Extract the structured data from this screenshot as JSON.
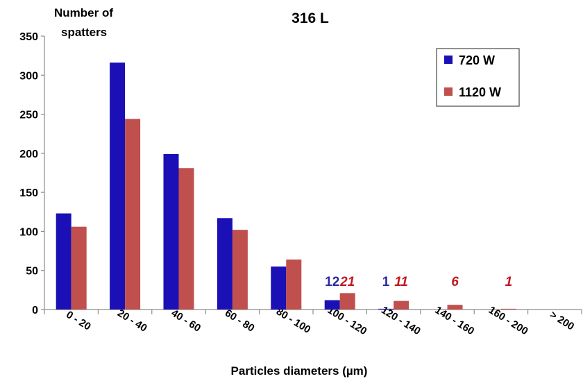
{
  "chart_data": {
    "type": "bar",
    "title": "316 L",
    "ylabel_lines": [
      "Number of",
      "spatters"
    ],
    "xlabel": "Particles diameters (µm)",
    "categories": [
      "0 - 20",
      "20 - 40",
      "40 - 60",
      "60 - 80",
      "80 - 100",
      "100 - 120",
      "120 - 140",
      "140 - 160",
      "160 - 200",
      "> 200"
    ],
    "ylim": [
      0,
      350
    ],
    "yticks": [
      0,
      50,
      100,
      150,
      200,
      250,
      300,
      350
    ],
    "grid": false,
    "legend_position": "top-right",
    "series": [
      {
        "name": "720 W",
        "color": "#1a10b5",
        "values": [
          123,
          316,
          199,
          117,
          55,
          12,
          1,
          0,
          0,
          0
        ]
      },
      {
        "name": "1120 W",
        "color": "#c0504d",
        "values": [
          106,
          244,
          181,
          102,
          64,
          21,
          11,
          6,
          1,
          0
        ]
      }
    ],
    "annotations": [
      {
        "text": "12",
        "category": "100 - 120",
        "series": "720 W",
        "color": "#2a2aa0",
        "italic": false
      },
      {
        "text": "21",
        "category": "100 - 120",
        "series": "1120 W",
        "color": "#c0181e",
        "italic": true
      },
      {
        "text": "1",
        "category": "120 - 140",
        "series": "720 W",
        "color": "#2a2aa0",
        "italic": false
      },
      {
        "text": "11",
        "category": "120 - 140",
        "series": "1120 W",
        "color": "#c0181e",
        "italic": true
      },
      {
        "text": "6",
        "category": "140 - 160",
        "series": "1120 W",
        "color": "#c0181e",
        "italic": true
      },
      {
        "text": "1",
        "category": "160 - 200",
        "series": "1120 W",
        "color": "#c0181e",
        "italic": true
      }
    ]
  }
}
